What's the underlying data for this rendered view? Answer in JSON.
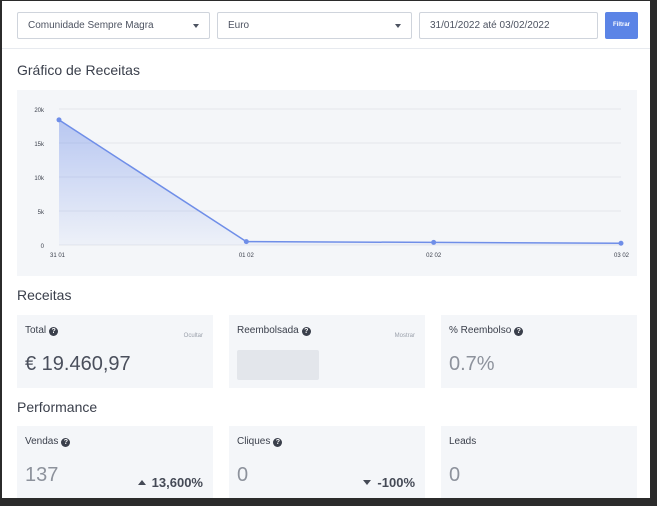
{
  "filters": {
    "community": "Comunidade Sempre Magra",
    "currency": "Euro",
    "date_range": "31/01/2022 até 03/02/2022",
    "filter_button": "Filtrar"
  },
  "revenue_chart": {
    "title": "Gráfico de Receitas",
    "chart_data": {
      "type": "area",
      "x": [
        "31 01",
        "01 02",
        "02 02",
        "03 02"
      ],
      "y_ticks": [
        "0",
        "5k",
        "10k",
        "15k",
        "20k"
      ],
      "ylim": [
        0,
        20000
      ],
      "series": [
        {
          "values": [
            18400,
            500,
            380,
            260
          ]
        }
      ],
      "grid": true,
      "color": "#6f8ee8"
    }
  },
  "revenue": {
    "title": "Receitas",
    "cards": {
      "total": {
        "label": "Total",
        "toggle": "Ocultar",
        "value": "€ 19.460,97"
      },
      "refunded": {
        "label": "Reembolsada",
        "toggle": "Mostrar"
      },
      "refund_pct": {
        "label": "% Reembolso",
        "value": "0.7%"
      }
    }
  },
  "performance": {
    "title": "Performance",
    "cards": {
      "sales": {
        "label": "Vendas",
        "value": "137",
        "trend": "13,600%",
        "trend_dir": "up"
      },
      "clicks": {
        "label": "Cliques",
        "value": "0",
        "trend": "-100%",
        "trend_dir": "down"
      },
      "leads": {
        "label": "Leads",
        "value": "0"
      }
    }
  }
}
